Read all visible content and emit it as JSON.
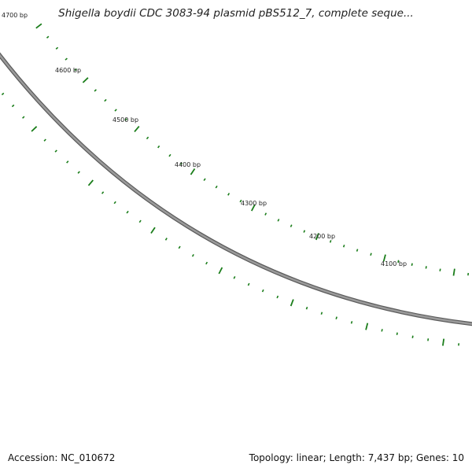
{
  "title": "Shigella boydii CDC 3083-94 plasmid pBS512_7, complete seque...",
  "footer": {
    "accession": "Accession: NC_010672",
    "meta": "Topology: linear; Length: 7,437 bp; Genes: 10"
  },
  "map": {
    "backbone_color": "#808080",
    "tick_color": "#1a7d1a",
    "major_labels": [
      "4700 bp",
      "4600 bp",
      "4500 bp",
      "4400 bp",
      "4300 bp",
      "4200 bp",
      "4100 bp"
    ],
    "major_positions_bp": [
      4700,
      4600,
      4500,
      4400,
      4300,
      4200,
      4100
    ]
  }
}
